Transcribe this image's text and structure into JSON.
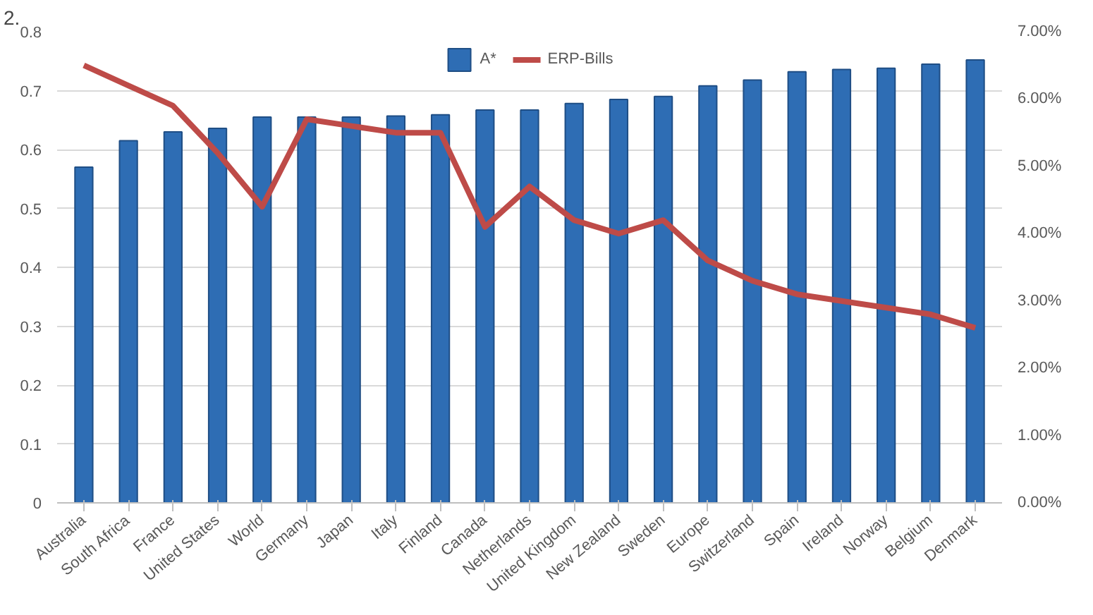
{
  "chart_data": {
    "type": "bar",
    "categories": [
      "Australia",
      "South Africa",
      "France",
      "United States",
      "World",
      "Germany",
      "Japan",
      "Italy",
      "Finland",
      "Canada",
      "Netherlands",
      "United Kingdom",
      "New Zealand",
      "Sweden",
      "Europe",
      "Switzerland",
      "Spain",
      "Ireland",
      "Norway",
      "Belgium",
      "Denmark"
    ],
    "series": [
      {
        "name": "A*",
        "color": "#2e6db4",
        "values": [
          0.57,
          0.615,
          0.63,
          0.636,
          0.655,
          0.655,
          0.655,
          0.657,
          0.659,
          0.667,
          0.667,
          0.678,
          0.685,
          0.69,
          0.708,
          0.718,
          0.732,
          0.736,
          0.738,
          0.745,
          0.752
        ]
      },
      {
        "name": "ERP-Bills",
        "type": "line",
        "axis": "y2",
        "color": "#be4b48",
        "values": [
          6.5,
          6.2,
          5.9,
          5.2,
          4.4,
          5.7,
          5.6,
          5.5,
          5.5,
          4.1,
          4.7,
          4.2,
          4.0,
          4.2,
          3.6,
          3.3,
          3.1,
          3.0,
          2.9,
          2.8,
          2.6
        ]
      }
    ],
    "ylim": [
      0,
      0.8
    ],
    "yticks": [
      0,
      0.1,
      0.2,
      0.3,
      0.4,
      0.5,
      0.6,
      0.7,
      0.8
    ],
    "y2lim": [
      0,
      7
    ],
    "y2ticks": [
      {
        "value": 0,
        "label": "0.00%"
      },
      {
        "value": 1,
        "label": "1.00%"
      },
      {
        "value": 2,
        "label": "2.00%"
      },
      {
        "value": 3,
        "label": "3.00%"
      },
      {
        "value": 4,
        "label": "4.00%"
      },
      {
        "value": 5,
        "label": "5.00%"
      },
      {
        "value": 6,
        "label": "6.00%"
      },
      {
        "value": 7,
        "label": "7.00%"
      }
    ],
    "grid": "y",
    "legend": "top",
    "annotations": [
      "2."
    ]
  }
}
